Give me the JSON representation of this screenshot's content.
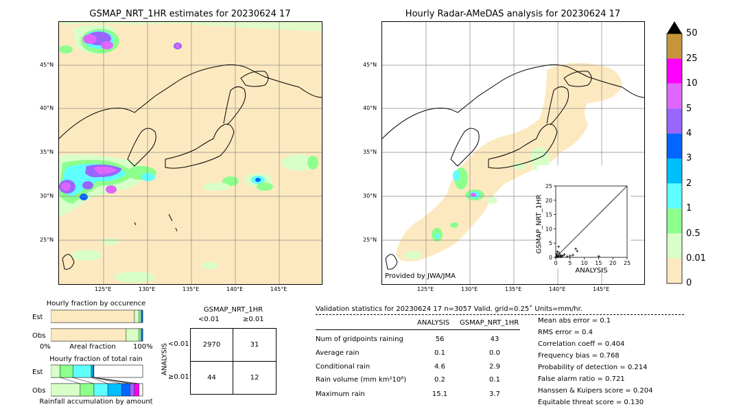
{
  "left_map": {
    "title": "GSMAP_NRT_1HR estimates for 20230624 17",
    "lat_labels": [
      "45°N",
      "40°N",
      "35°N",
      "30°N",
      "25°N"
    ],
    "lon_labels": [
      "125°E",
      "130°E",
      "135°E",
      "140°E",
      "145°E"
    ]
  },
  "right_map": {
    "title": "Hourly Radar-AMeDAS analysis for 20230624 17",
    "lat_labels": [
      "45°N",
      "40°N",
      "35°N",
      "30°N",
      "25°N"
    ],
    "lon_labels": [
      "125°E",
      "130°E",
      "135°E",
      "140°E",
      "145°E"
    ],
    "credit": "Provided by JWA/JMA"
  },
  "colorbar": {
    "labels": [
      "50",
      "25",
      "10",
      "5",
      "4",
      "3",
      "2",
      "1",
      "0.5",
      "0.01",
      "0"
    ],
    "colors": [
      "#c8953b",
      "#ff00ff",
      "#e066ff",
      "#9966ff",
      "#0066ff",
      "#00bfff",
      "#5fffff",
      "#8cff8c",
      "#d8ffc8",
      "#fde9c0"
    ]
  },
  "chart_data": [
    {
      "type": "scatter",
      "title": "",
      "xlabel": "ANALYSIS",
      "ylabel": "GSMAP_NRT_1HR",
      "xlim": [
        0,
        25
      ],
      "ylim": [
        0,
        25
      ],
      "xticks": [
        "0",
        "5",
        "10",
        "15",
        "20",
        "25"
      ],
      "yticks": [
        "0",
        "5",
        "10",
        "15",
        "20",
        "25"
      ],
      "diagonal": true,
      "points": [
        [
          0.2,
          0.1
        ],
        [
          0.5,
          0.3
        ],
        [
          0.8,
          0.5
        ],
        [
          1.0,
          0.2
        ],
        [
          1.5,
          0.8
        ],
        [
          2.0,
          0.5
        ],
        [
          0.3,
          1.2
        ],
        [
          0.6,
          2.0
        ],
        [
          1.2,
          1.5
        ],
        [
          2.5,
          0.6
        ],
        [
          3.0,
          1.0
        ],
        [
          4.0,
          0.3
        ],
        [
          5.0,
          0.5
        ],
        [
          6.0,
          0.8
        ],
        [
          7.0,
          3.0
        ],
        [
          7.5,
          2.2
        ],
        [
          15.1,
          0.4
        ],
        [
          1.0,
          3.7
        ],
        [
          0.4,
          0.6
        ],
        [
          1.8,
          0.2
        ]
      ]
    },
    {
      "type": "bar",
      "title": "Hourly fraction by occurence",
      "categories": [
        "Est",
        "Obs"
      ],
      "xlabel": "Areal fraction",
      "x_tick_labels": [
        "0%",
        "100%"
      ],
      "series": [
        {
          "values": [
            0.91,
            0.82
          ]
        },
        {
          "values": [
            0.05,
            0.14
          ]
        },
        {
          "values": [
            0.02,
            0.02
          ]
        },
        {
          "values": [
            0.01,
            0.01
          ]
        },
        {
          "values": [
            0.01,
            0.01
          ]
        }
      ]
    },
    {
      "type": "bar",
      "title": "Hourly fraction of total rain",
      "categories": [
        "Est",
        "Obs"
      ],
      "xlabel": "Rainfall accumulation by amount",
      "series": [
        {
          "values": [
            0.1,
            0.32
          ]
        },
        {
          "values": [
            0.14,
            0.15
          ]
        },
        {
          "values": [
            0.2,
            0.15
          ]
        },
        {
          "values": [
            0.02,
            0.15
          ]
        },
        {
          "values": [
            0.01,
            0.09
          ]
        },
        {
          "values": [
            0.0,
            0.05
          ]
        },
        {
          "values": [
            0.0,
            0.05
          ]
        }
      ]
    }
  ],
  "contingency": {
    "title": "GSMAP_NRT_1HR",
    "col_headers": [
      "<0.01",
      "≥0.01"
    ],
    "row_headers": [
      "<0.01",
      "≥0.01"
    ],
    "axis_label": "ANALYSIS",
    "cells": [
      [
        "2970",
        "31"
      ],
      [
        "44",
        "12"
      ]
    ]
  },
  "validation": {
    "header": "Validation statistics for 20230624 17  n=3057 Valid. grid=0.25˚ Units=mm/hr.",
    "col_analysis": "ANALYSIS",
    "col_gsmap": "GSMAP_NRT_1HR",
    "rows": [
      {
        "label": "Num of gridpoints raining",
        "a": "56",
        "g": "43"
      },
      {
        "label": "Average rain",
        "a": "0.1",
        "g": "0.0"
      },
      {
        "label": "Conditional rain",
        "a": "4.6",
        "g": "2.9"
      },
      {
        "label": "Rain volume (mm km²10⁶)",
        "a": "0.2",
        "g": "0.1"
      },
      {
        "label": "Maximum rain",
        "a": "15.1",
        "g": "3.7"
      }
    ],
    "scores": [
      "Mean abs error =    0.1",
      "RMS error =    0.4",
      "Correlation coeff =  0.404",
      "Frequency bias =  0.768",
      "Probability of detection =  0.214",
      "False alarm ratio =  0.721",
      "Hanssen & Kuipers score =  0.204",
      "Equitable threat score =  0.130"
    ]
  }
}
